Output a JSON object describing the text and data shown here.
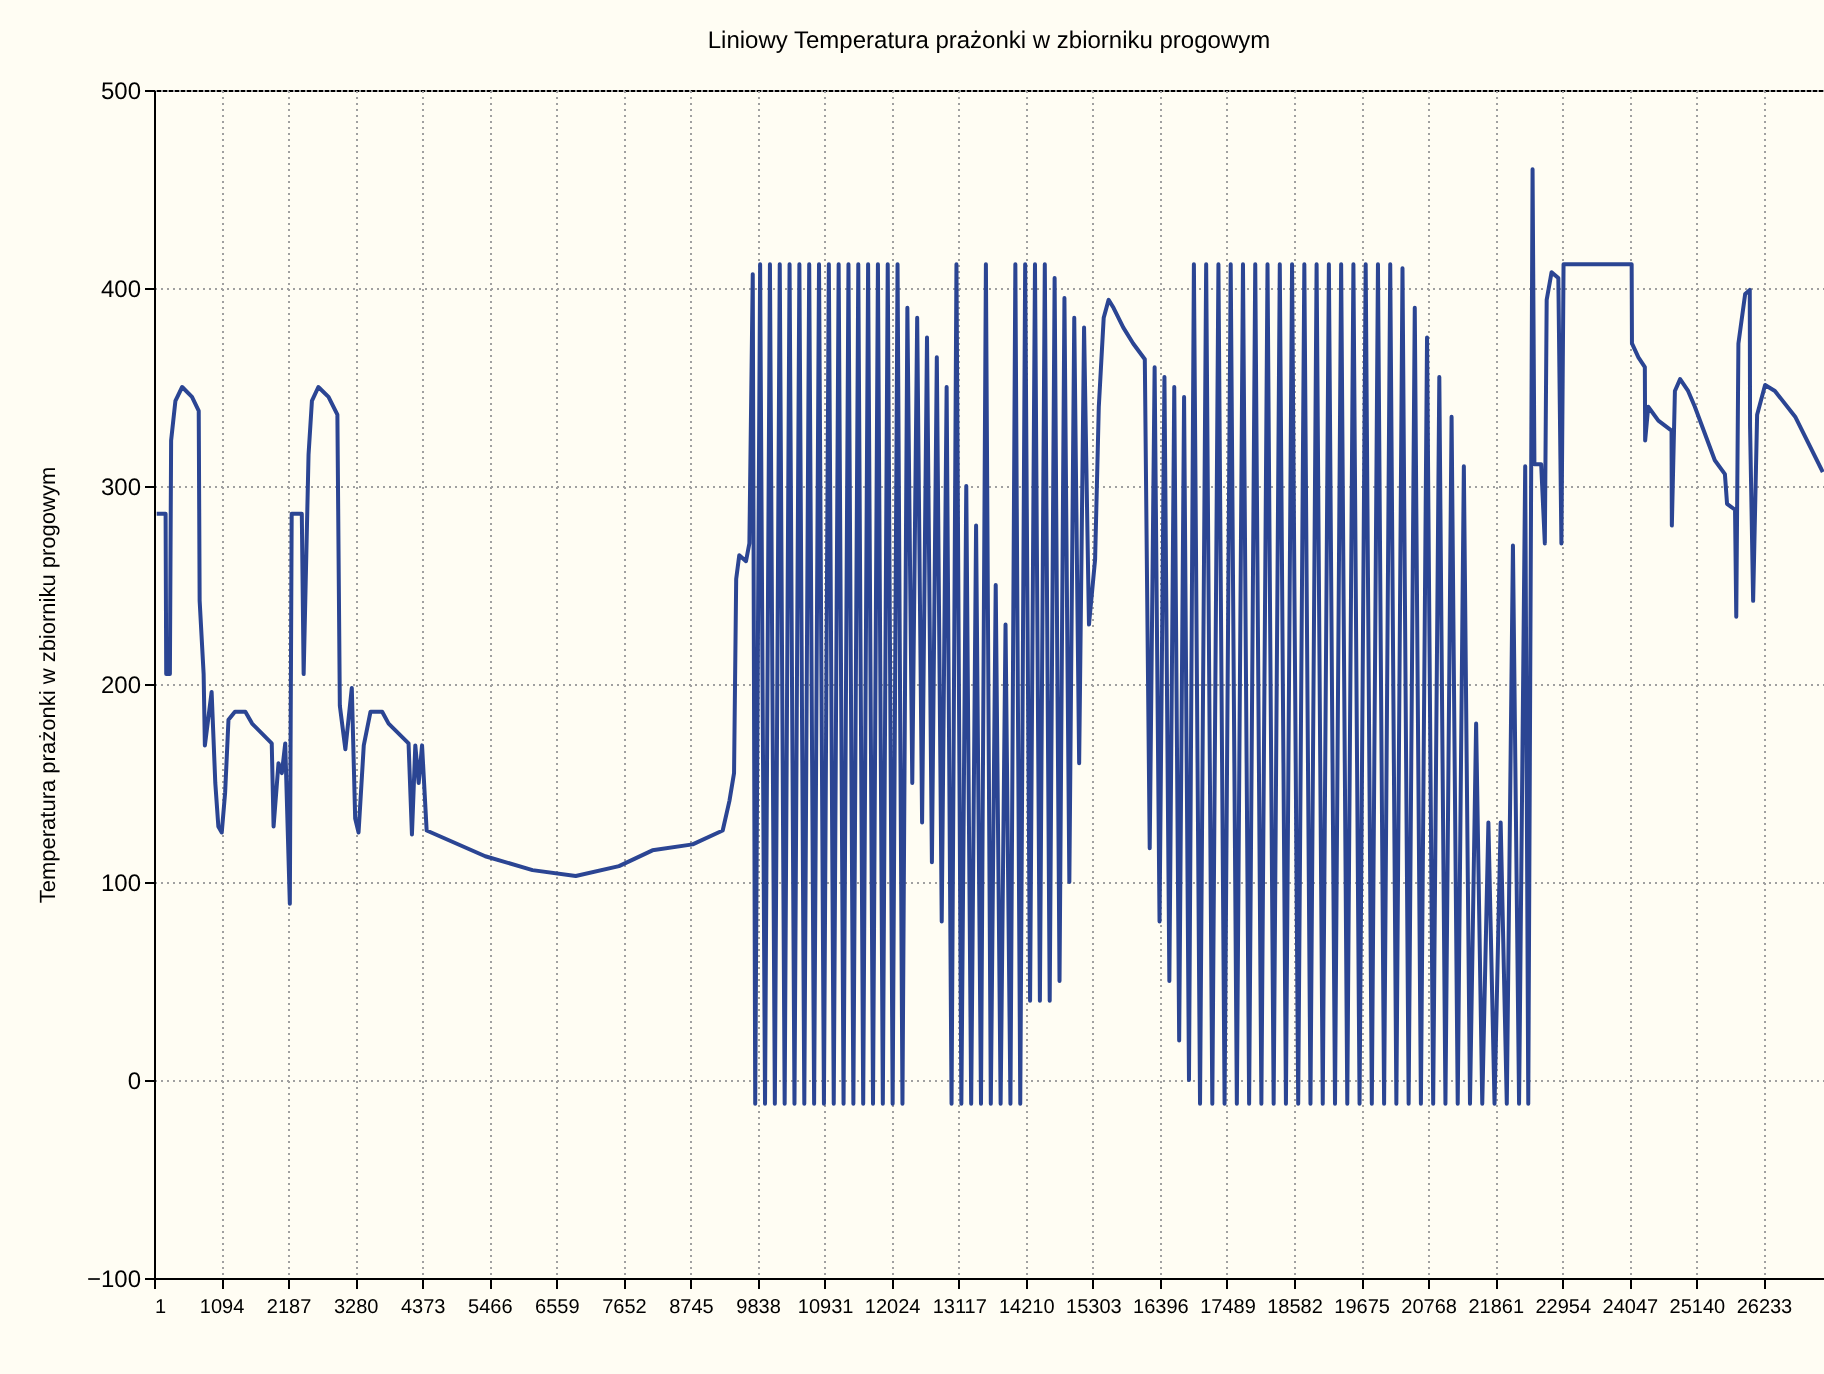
{
  "chart_data": {
    "type": "line",
    "title": "Liniowy   Temperatura prażonki w zbiorniku progowym",
    "ylabel": "Temperatura prażonki w zbiorniku progowym",
    "xlim": [
      1,
      27220
    ],
    "xticks": [
      1,
      1094,
      2187,
      3280,
      4373,
      5466,
      6559,
      7652,
      8745,
      9838,
      10931,
      12024,
      13117,
      14210,
      15303,
      16396,
      17489,
      18582,
      19675,
      20768,
      21861,
      22954,
      24047,
      25140,
      26233
    ],
    "ylim": [
      -100,
      500
    ],
    "yticks": [
      -100,
      0,
      100,
      200,
      300,
      400,
      500
    ],
    "grid": true,
    "series": [
      {
        "color": "#2b4593",
        "x": [
          45,
          190,
          200,
          260,
          280,
          350,
          460,
          620,
          730,
          745,
          810,
          830,
          940,
          1000,
          1050,
          1105,
          1160,
          1215,
          1320,
          1490,
          1600,
          1920,
          1950,
          2030,
          2085,
          2140,
          2215,
          2245,
          2410,
          2440,
          2520,
          2575,
          2680,
          2845,
          2990,
          3030,
          3120,
          3225,
          3280,
          3335,
          3420,
          3530,
          3720,
          3825,
          4150,
          4205,
          4260,
          4315,
          4370,
          4445,
          5400,
          6170,
          6875,
          7580,
          8125,
          8780,
          9270,
          9380,
          9455,
          9490,
          9540,
          9650,
          9705,
          9760,
          9800,
          9880,
          9960,
          10040,
          10120,
          10200,
          10280,
          10360,
          10440,
          10520,
          10600,
          10680,
          10760,
          10840,
          10920,
          11000,
          11080,
          11160,
          11240,
          11320,
          11400,
          11480,
          11560,
          11640,
          11720,
          11800,
          11880,
          11960,
          12040,
          12120,
          12200,
          12280,
          12360,
          12440,
          12520,
          12600,
          12680,
          12760,
          12840,
          12920,
          13000,
          13080,
          13160,
          13240,
          13320,
          13400,
          13480,
          13560,
          13640,
          13720,
          13800,
          13880,
          13960,
          14040,
          14120,
          14200,
          14280,
          14360,
          14440,
          14520,
          14600,
          14680,
          14760,
          14840,
          14920,
          15000,
          15080,
          15160,
          15240,
          15340,
          15400,
          15480,
          15560,
          15640,
          15800,
          15960,
          16150,
          16230,
          16310,
          16390,
          16470,
          16550,
          16630,
          16710,
          16790,
          16870,
          16950,
          17050,
          17150,
          17250,
          17350,
          17450,
          17550,
          17650,
          17750,
          17850,
          17950,
          18050,
          18150,
          18250,
          18350,
          18450,
          18550,
          18650,
          18750,
          18850,
          18950,
          19050,
          19150,
          19250,
          19350,
          19450,
          19550,
          19650,
          19750,
          19850,
          19950,
          20050,
          20150,
          20250,
          20350,
          20450,
          20550,
          20650,
          20750,
          20850,
          20950,
          21050,
          21150,
          21250,
          21350,
          21450,
          21550,
          21650,
          21750,
          21850,
          21950,
          22050,
          22150,
          22250,
          22350,
          22400,
          22470,
          22500,
          22610,
          22670,
          22700,
          22780,
          22890,
          22940,
          22975,
          24085,
          24090,
          24195,
          24300,
          24305,
          24355,
          24520,
          24735,
          24740,
          24790,
          24875,
          25005,
          25115,
          25440,
          25605,
          25640,
          25770,
          25790,
          25825,
          25935,
          26010,
          26015,
          26065,
          26130,
          26260,
          26420,
          26750,
          27200
        ],
        "values": [
          286,
          286,
          205,
          205,
          323,
          343,
          350,
          345,
          338,
          242,
          205,
          169,
          196,
          150,
          128,
          125,
          145,
          182,
          186,
          186,
          180,
          170,
          128,
          160,
          155,
          170,
          89,
          286,
          286,
          205,
          316,
          343,
          350,
          345,
          336,
          189,
          167,
          198,
          132,
          125,
          169,
          186,
          186,
          180,
          170,
          124,
          169,
          150,
          169,
          126,
          113,
          106,
          103,
          108,
          116,
          119,
          126,
          141,
          155,
          253,
          265,
          262,
          271,
          407,
          -12,
          412,
          -12,
          412,
          -12,
          412,
          -12,
          412,
          -12,
          412,
          -12,
          412,
          -12,
          412,
          -12,
          412,
          -12,
          412,
          -12,
          412,
          -12,
          412,
          -12,
          412,
          -12,
          412,
          -12,
          412,
          -12,
          412,
          -12,
          390,
          150,
          385,
          130,
          375,
          110,
          365,
          80,
          350,
          -12,
          412,
          -12,
          300,
          -12,
          280,
          -12,
          412,
          -12,
          250,
          -12,
          230,
          -12,
          412,
          -12,
          412,
          40,
          412,
          40,
          412,
          40,
          405,
          50,
          395,
          100,
          385,
          160,
          380,
          230,
          263,
          340,
          385,
          394,
          390,
          380,
          372,
          364,
          117,
          360,
          80,
          355,
          50,
          350,
          20,
          345,
          0,
          412,
          -12,
          412,
          -12,
          412,
          -12,
          412,
          -12,
          412,
          -12,
          412,
          -12,
          412,
          -12,
          412,
          -12,
          412,
          -12,
          412,
          -12,
          412,
          -12,
          412,
          -12,
          412,
          -12,
          412,
          -12,
          412,
          -12,
          412,
          -12,
          412,
          -12,
          410,
          -12,
          390,
          -12,
          375,
          -12,
          355,
          -12,
          335,
          -12,
          310,
          -12,
          180,
          -12,
          130,
          -12,
          130,
          -12,
          270,
          -12,
          310,
          -12,
          460,
          311,
          311,
          271,
          394,
          408,
          405,
          271,
          412,
          412,
          372,
          365,
          360,
          323,
          340,
          333,
          328,
          280,
          348,
          354,
          348,
          340,
          313,
          306,
          291,
          288,
          234,
          372,
          397,
          399,
          330,
          242,
          336,
          351,
          348,
          335,
          307
        ]
      }
    ]
  }
}
